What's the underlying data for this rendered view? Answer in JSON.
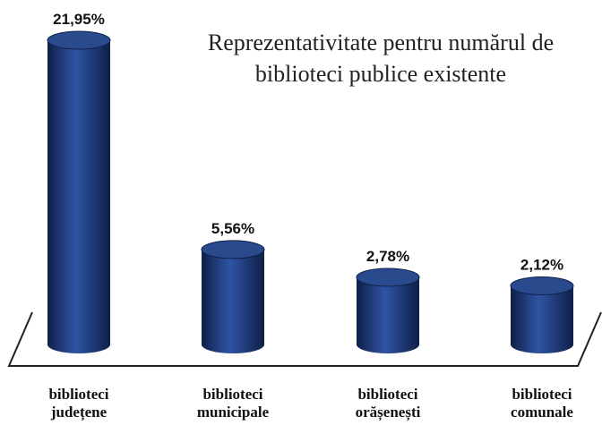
{
  "chart_data": {
    "type": "bar",
    "title_lines": [
      "Reprezentativitate pentru numărul de",
      "biblioteci publice existente"
    ],
    "categories": [
      [
        "biblioteci",
        "județene"
      ],
      [
        "biblioteci",
        "municipale"
      ],
      [
        "biblioteci",
        "orășenești"
      ],
      [
        "biblioteci",
        "comunale"
      ]
    ],
    "values": [
      21.95,
      5.56,
      2.78,
      2.12
    ],
    "value_labels": [
      "21,95%",
      "5,56%",
      "2,78%",
      "2,12%"
    ],
    "unit": "%",
    "grid": false,
    "legend": false,
    "colors": {
      "bar_top": "#2a4a8e",
      "bar_side_dark": "#0f1f48",
      "bar_side_mid": "#1e3a7e",
      "bar_side_light": "#2f54a4",
      "axis": "#222222"
    }
  }
}
